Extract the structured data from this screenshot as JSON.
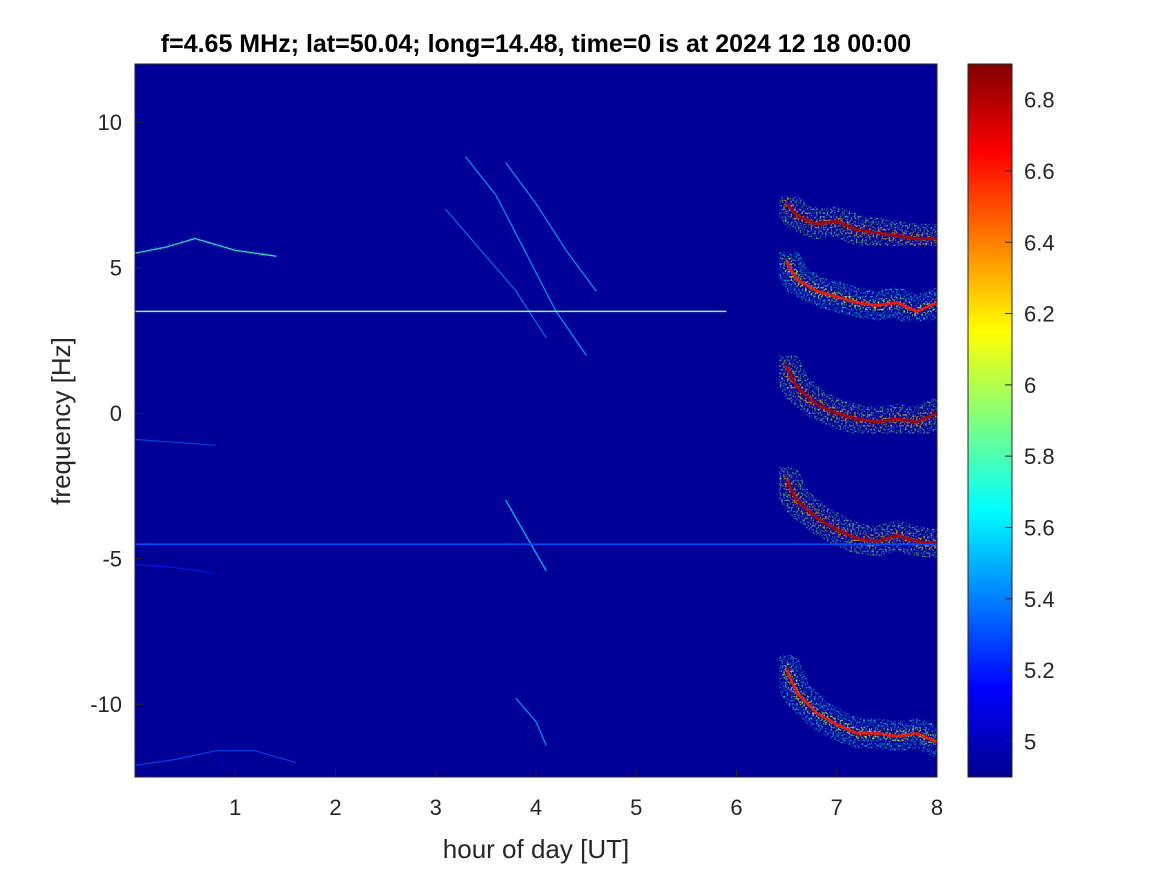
{
  "chart_data": {
    "type": "heatmap",
    "title": "f=4.65 MHz;  lat=50.04; long=14.48, time=0 is at 2024 12 18 00:00",
    "xlabel": "hour of day [UT]",
    "ylabel": "frequency [Hz]",
    "xlim": [
      0,
      8
    ],
    "ylim": [
      -12.5,
      12.0
    ],
    "xticks": [
      1,
      2,
      3,
      4,
      5,
      6,
      7,
      8
    ],
    "xtick_labels": [
      "1",
      "2",
      "3",
      "4",
      "5",
      "6",
      "7",
      "8"
    ],
    "yticks": [
      -10,
      -5,
      0,
      5,
      10
    ],
    "ytick_labels": [
      "-10",
      "-5",
      "0",
      "5",
      "10"
    ],
    "colorbar": {
      "range": [
        4.9,
        6.9
      ],
      "ticks": [
        5,
        5.2,
        5.4,
        5.6,
        5.8,
        6,
        6.2,
        6.4,
        6.6,
        6.8
      ],
      "tick_labels": [
        "5",
        "5.2",
        "5.4",
        "5.6",
        "5.8",
        "6",
        "6.2",
        "6.4",
        "6.6",
        "6.8"
      ],
      "colormap": "jet"
    },
    "background_value": 4.95,
    "constant_lines": [
      {
        "y": 3.5,
        "x_start": 0.0,
        "x_end": 5.9,
        "value": 5.9
      },
      {
        "y": -4.5,
        "x_start": 0.0,
        "x_end": 8.0,
        "value": 5.3
      }
    ],
    "traces": [
      {
        "value": 6.8,
        "points": [
          [
            6.5,
            7.2
          ],
          [
            6.6,
            6.8
          ],
          [
            6.8,
            6.5
          ],
          [
            7.0,
            6.6
          ],
          [
            7.2,
            6.3
          ],
          [
            7.4,
            6.2
          ],
          [
            7.6,
            6.1
          ],
          [
            7.8,
            6.0
          ],
          [
            8.0,
            6.0
          ]
        ]
      },
      {
        "value": 6.6,
        "points": [
          [
            6.5,
            5.2
          ],
          [
            6.6,
            4.6
          ],
          [
            6.8,
            4.2
          ],
          [
            7.0,
            4.0
          ],
          [
            7.2,
            3.8
          ],
          [
            7.4,
            3.7
          ],
          [
            7.6,
            3.8
          ],
          [
            7.8,
            3.5
          ],
          [
            8.0,
            3.8
          ]
        ]
      },
      {
        "value": 6.8,
        "points": [
          [
            6.5,
            1.6
          ],
          [
            6.6,
            0.9
          ],
          [
            6.8,
            0.3
          ],
          [
            7.0,
            0.0
          ],
          [
            7.2,
            -0.2
          ],
          [
            7.4,
            -0.3
          ],
          [
            7.6,
            -0.2
          ],
          [
            7.8,
            -0.3
          ],
          [
            8.0,
            0.0
          ]
        ]
      },
      {
        "value": 6.8,
        "points": [
          [
            6.5,
            -2.3
          ],
          [
            6.6,
            -3.0
          ],
          [
            6.8,
            -3.6
          ],
          [
            7.0,
            -4.0
          ],
          [
            7.2,
            -4.3
          ],
          [
            7.4,
            -4.4
          ],
          [
            7.6,
            -4.2
          ],
          [
            7.8,
            -4.4
          ],
          [
            8.0,
            -4.5
          ]
        ]
      },
      {
        "value": 6.6,
        "points": [
          [
            6.5,
            -8.8
          ],
          [
            6.6,
            -9.6
          ],
          [
            6.8,
            -10.3
          ],
          [
            7.0,
            -10.7
          ],
          [
            7.2,
            -11.0
          ],
          [
            7.4,
            -11.0
          ],
          [
            7.6,
            -11.1
          ],
          [
            7.8,
            -11.0
          ],
          [
            8.0,
            -11.3
          ]
        ]
      },
      {
        "value": 5.8,
        "points": [
          [
            0.0,
            5.5
          ],
          [
            0.3,
            5.7
          ],
          [
            0.6,
            6.0
          ],
          [
            1.0,
            5.6
          ],
          [
            1.4,
            5.4
          ]
        ]
      },
      {
        "value": 5.5,
        "points": [
          [
            3.3,
            8.8
          ],
          [
            3.6,
            7.5
          ],
          [
            3.9,
            5.5
          ],
          [
            4.2,
            3.5
          ],
          [
            4.5,
            2.0
          ]
        ]
      },
      {
        "value": 5.5,
        "points": [
          [
            3.7,
            8.6
          ],
          [
            4.0,
            7.2
          ],
          [
            4.3,
            5.6
          ],
          [
            4.6,
            4.2
          ]
        ]
      },
      {
        "value": 5.4,
        "points": [
          [
            3.1,
            7.0
          ],
          [
            3.4,
            5.8
          ],
          [
            3.8,
            4.2
          ],
          [
            4.1,
            2.6
          ]
        ]
      },
      {
        "value": 5.6,
        "points": [
          [
            3.7,
            -3.0
          ],
          [
            3.9,
            -4.2
          ],
          [
            4.1,
            -5.4
          ]
        ]
      },
      {
        "value": 5.5,
        "points": [
          [
            3.8,
            -9.8
          ],
          [
            4.0,
            -10.6
          ],
          [
            4.1,
            -11.4
          ]
        ]
      },
      {
        "value": 5.3,
        "points": [
          [
            0.0,
            -12.1
          ],
          [
            0.4,
            -11.9
          ],
          [
            0.8,
            -11.6
          ],
          [
            1.2,
            -11.6
          ],
          [
            1.6,
            -12.0
          ]
        ]
      },
      {
        "value": 5.3,
        "points": [
          [
            0.0,
            -0.9
          ],
          [
            0.4,
            -1.0
          ],
          [
            0.8,
            -1.1
          ]
        ]
      },
      {
        "value": 5.2,
        "points": [
          [
            0.0,
            -5.2
          ],
          [
            0.4,
            -5.3
          ],
          [
            0.8,
            -5.5
          ]
        ]
      }
    ]
  }
}
